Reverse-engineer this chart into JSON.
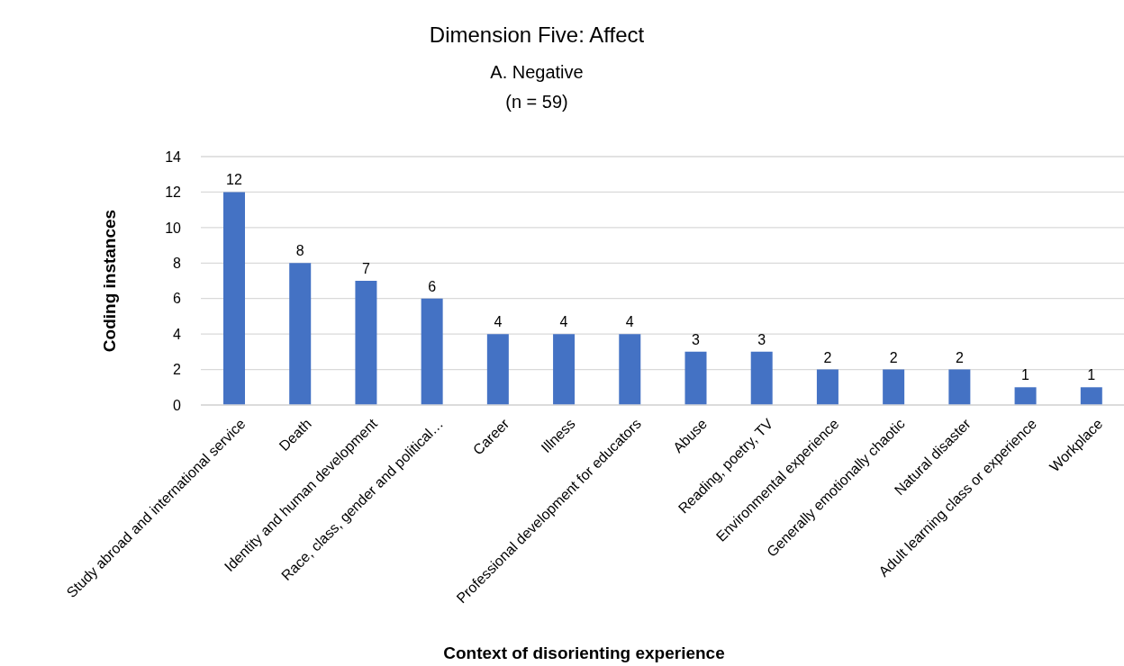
{
  "chart_data": {
    "type": "bar",
    "title": "Dimension Five: Affect",
    "subtitle": "A. Negative\n(n = 59)",
    "xlabel": "Context of disorienting experience",
    "ylabel": "Coding instances",
    "categories": [
      "Study abroad and international service",
      "Death",
      "Identity and human development",
      "Race, class, gender and political…",
      "Career",
      "Illness",
      "Professional development for educators",
      "Abuse",
      "Reading, poetry, TV",
      "Environmental experience",
      "Generally emotionally chaotic",
      "Natural disaster",
      "Adult learning class or experience",
      "Workplace"
    ],
    "values": [
      12,
      8,
      7,
      6,
      4,
      4,
      4,
      3,
      3,
      2,
      2,
      2,
      1,
      1
    ],
    "color": "#4472c4",
    "ylim": [
      0,
      14
    ],
    "yticks": [
      0,
      2,
      4,
      6,
      8,
      10,
      12,
      14
    ],
    "grid": "y",
    "data_labels": true
  }
}
